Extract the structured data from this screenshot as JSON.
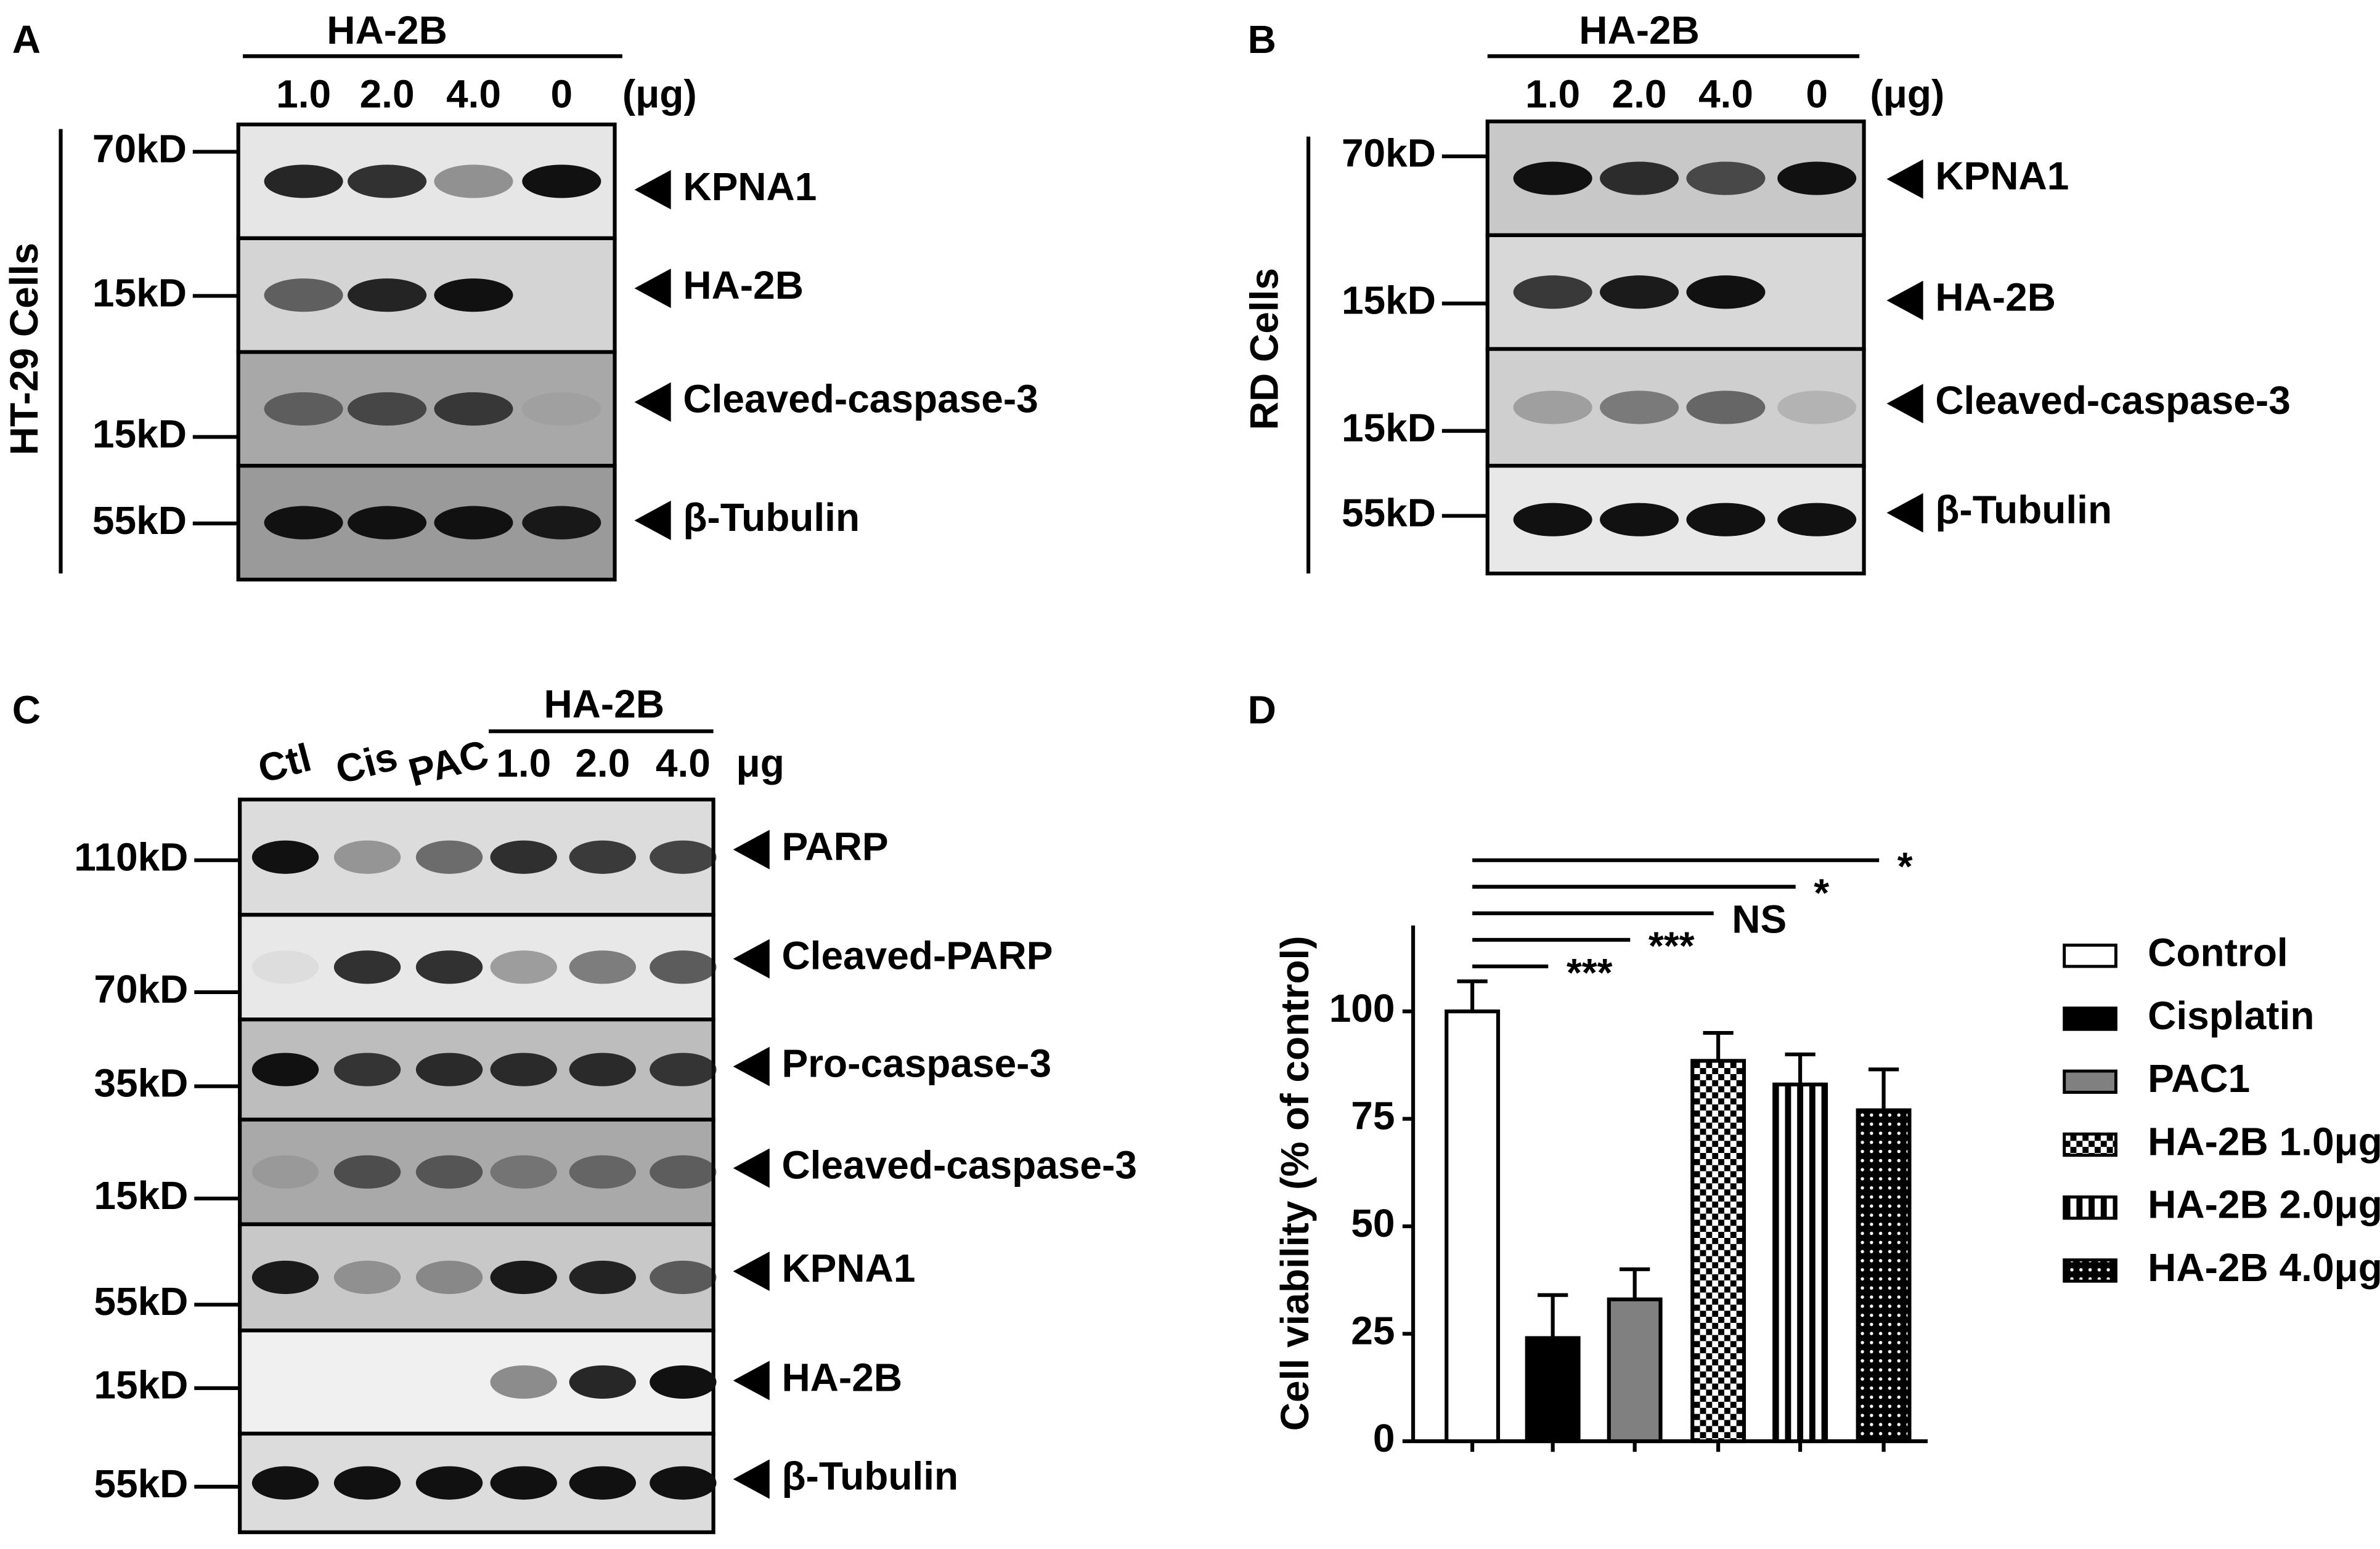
{
  "panels": {
    "A": {
      "label": "A",
      "header": "HA-2B",
      "lanes": [
        "1.0",
        "2.0",
        "4.0",
        "0"
      ],
      "unit": "(μg)",
      "side": "HT-29 Cells",
      "markers": [
        "70kD",
        "15kD",
        "15kD",
        "55kD"
      ],
      "proteins": [
        "KPNA1",
        "HA-2B",
        "Cleaved-caspase-3",
        "β-Tubulin"
      ]
    },
    "B": {
      "label": "B",
      "header": "HA-2B",
      "lanes": [
        "1.0",
        "2.0",
        "4.0",
        "0"
      ],
      "unit": "(μg)",
      "side": "RD Cells",
      "markers": [
        "70kD",
        "15kD",
        "15kD",
        "55kD"
      ],
      "proteins": [
        "KPNA1",
        "HA-2B",
        "Cleaved-caspase-3",
        "β-Tubulin"
      ]
    },
    "C": {
      "label": "C",
      "header": "HA-2B",
      "lanes": [
        "Ctl",
        "Cis",
        "PAC",
        "1.0",
        "2.0",
        "4.0"
      ],
      "unit": "μg",
      "markers": [
        "110kD",
        "70kD",
        "35kD",
        "15kD",
        "55kD",
        "15kD",
        "55kD"
      ],
      "proteins": [
        "PARP",
        "Cleaved-PARP",
        "Pro-caspase-3",
        "Cleaved-caspase-3",
        "KPNA1",
        "HA-2B",
        "β-Tubulin"
      ]
    },
    "D": {
      "label": "D"
    }
  },
  "chart_data": {
    "type": "bar",
    "y_label": "Cell viability (% of control)",
    "categories": [
      "Control",
      "Cisplatin",
      "PAC1",
      "HA-2B 1.0μg",
      "HA-2B 2.0μg",
      "HA-2B 4.0μg"
    ],
    "values": [
      100,
      24,
      33,
      88.5,
      83,
      77
    ],
    "errors": [
      7,
      10,
      7,
      6.5,
      7,
      9.5
    ],
    "colors": [
      "#ffffff",
      "#000000",
      "#808080",
      "#000000",
      "#000000",
      "#000000"
    ],
    "patterns": [
      "solid",
      "solid",
      "solid",
      "checker",
      "stripes",
      "dots"
    ],
    "significance": [
      "***",
      "***",
      "NS",
      "*",
      "*"
    ],
    "ylim": [
      0,
      120
    ],
    "yticks": [
      0,
      25,
      50,
      75,
      100
    ],
    "legend": "right"
  }
}
